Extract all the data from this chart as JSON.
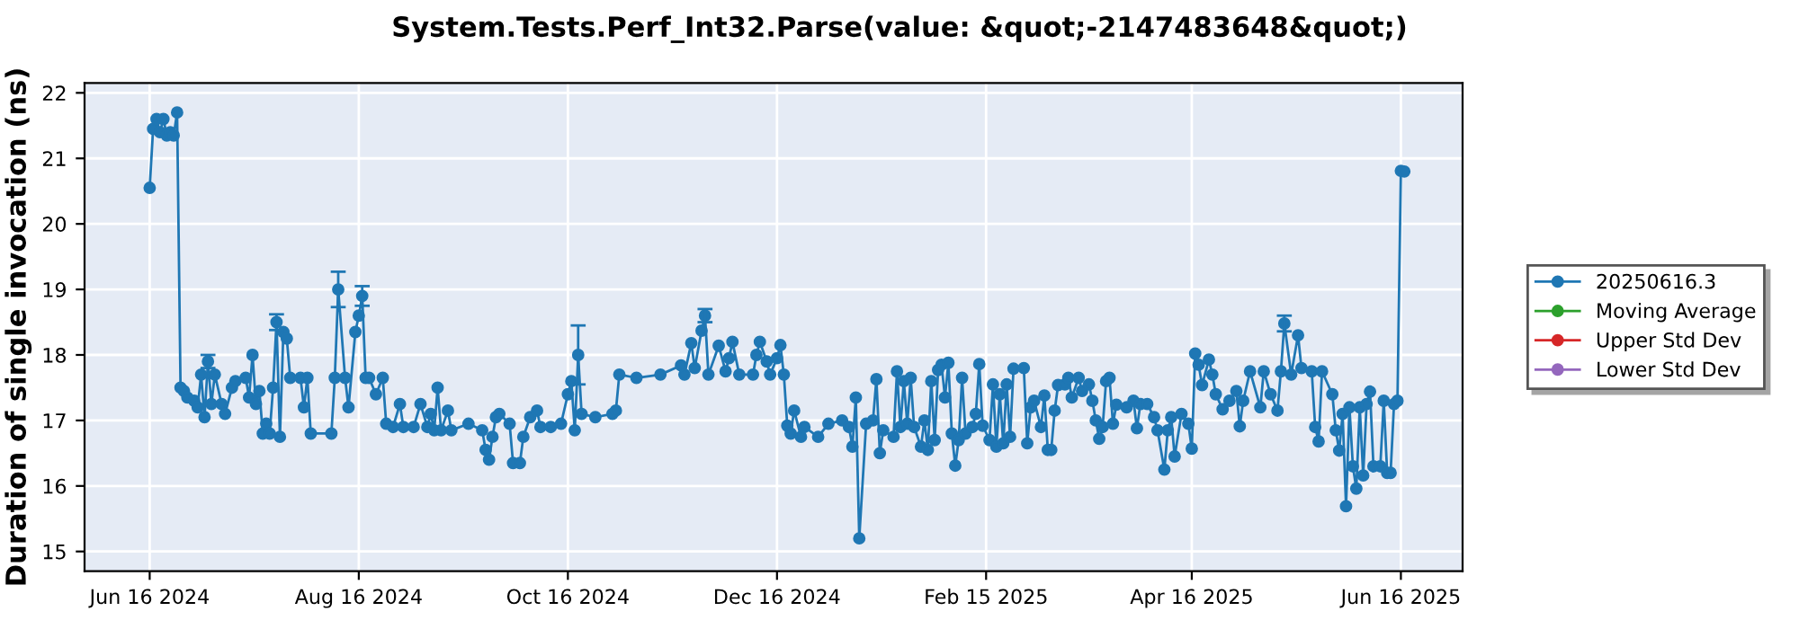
{
  "chart_data": {
    "type": "line",
    "title": "System.Tests.Perf_Int32.Parse(value: &quot;-2147483648&quot;)",
    "ylabel": "Duration of single invocation (ns)",
    "xlim": [
      "2024-05-28",
      "2025-07-04"
    ],
    "ylim": [
      14.7,
      22.15
    ],
    "xticks": [
      {
        "value": "2024-06-16",
        "label": "Jun 16 2024"
      },
      {
        "value": "2024-08-16",
        "label": "Aug 16 2024"
      },
      {
        "value": "2024-10-16",
        "label": "Oct 16 2024"
      },
      {
        "value": "2024-12-16",
        "label": "Dec 16 2024"
      },
      {
        "value": "2025-02-15",
        "label": "Feb 15 2025"
      },
      {
        "value": "2025-04-16",
        "label": "Apr 16 2025"
      },
      {
        "value": "2025-06-16",
        "label": "Jun 16 2025"
      }
    ],
    "yticks": [
      15,
      16,
      17,
      18,
      19,
      20,
      21,
      22
    ],
    "grid": true,
    "legend": "right",
    "marker": "circle",
    "line_style": "solid",
    "x": [
      "2024-06-16",
      "2024-06-17",
      "2024-06-18",
      "2024-06-19",
      "2024-06-20",
      "2024-06-21",
      "2024-06-22",
      "2024-06-23",
      "2024-06-24",
      "2024-06-25",
      "2024-06-26",
      "2024-06-27",
      "2024-06-29",
      "2024-06-30",
      "2024-07-01",
      "2024-07-02",
      "2024-07-03",
      "2024-07-04",
      "2024-07-05",
      "2024-07-07",
      "2024-07-08",
      "2024-07-10",
      "2024-07-11",
      "2024-07-14",
      "2024-07-15",
      "2024-07-16",
      "2024-07-17",
      "2024-07-18",
      "2024-07-19",
      "2024-07-20",
      "2024-07-21",
      "2024-07-22",
      "2024-07-23",
      "2024-07-24",
      "2024-07-25",
      "2024-07-26",
      "2024-07-27",
      "2024-07-30",
      "2024-07-31",
      "2024-08-01",
      "2024-08-02",
      "2024-08-08",
      "2024-08-09",
      "2024-08-10",
      "2024-08-12",
      "2024-08-13",
      "2024-08-15",
      "2024-08-16",
      "2024-08-17",
      "2024-08-18",
      "2024-08-19",
      "2024-08-21",
      "2024-08-23",
      "2024-08-24",
      "2024-08-26",
      "2024-08-28",
      "2024-08-29",
      "2024-09-01",
      "2024-09-03",
      "2024-09-05",
      "2024-09-06",
      "2024-09-07",
      "2024-09-08",
      "2024-09-09",
      "2024-09-11",
      "2024-09-12",
      "2024-09-17",
      "2024-09-21",
      "2024-09-22",
      "2024-09-23",
      "2024-09-24",
      "2024-09-25",
      "2024-09-26",
      "2024-09-29",
      "2024-09-30",
      "2024-10-02",
      "2024-10-03",
      "2024-10-05",
      "2024-10-07",
      "2024-10-08",
      "2024-10-11",
      "2024-10-14",
      "2024-10-16",
      "2024-10-17",
      "2024-10-18",
      "2024-10-19",
      "2024-10-20",
      "2024-10-24",
      "2024-10-29",
      "2024-10-30",
      "2024-10-31",
      "2024-11-05",
      "2024-11-12",
      "2024-11-18",
      "2024-11-19",
      "2024-11-21",
      "2024-11-22",
      "2024-11-24",
      "2024-11-25",
      "2024-11-26",
      "2024-11-29",
      "2024-12-01",
      "2024-12-02",
      "2024-12-03",
      "2024-12-05",
      "2024-12-09",
      "2024-12-10",
      "2024-12-11",
      "2024-12-13",
      "2024-12-14",
      "2024-12-16",
      "2024-12-17",
      "2024-12-18",
      "2024-12-19",
      "2024-12-20",
      "2024-12-21",
      "2024-12-23",
      "2024-12-24",
      "2024-12-28",
      "2024-12-31",
      "2025-01-04",
      "2025-01-06",
      "2025-01-07",
      "2025-01-08",
      "2025-01-09",
      "2025-01-11",
      "2025-01-13",
      "2025-01-14",
      "2025-01-15",
      "2025-01-16",
      "2025-01-19",
      "2025-01-20",
      "2025-01-21",
      "2025-01-22",
      "2025-01-23",
      "2025-01-24",
      "2025-01-25",
      "2025-01-27",
      "2025-01-28",
      "2025-01-29",
      "2025-01-30",
      "2025-01-31",
      "2025-02-01",
      "2025-02-02",
      "2025-02-03",
      "2025-02-04",
      "2025-02-05",
      "2025-02-06",
      "2025-02-07",
      "2025-02-08",
      "2025-02-09",
      "2025-02-11",
      "2025-02-12",
      "2025-02-13",
      "2025-02-14",
      "2025-02-16",
      "2025-02-17",
      "2025-02-18",
      "2025-02-19",
      "2025-02-20",
      "2025-02-21",
      "2025-02-22",
      "2025-02-23",
      "2025-02-26",
      "2025-02-27",
      "2025-02-28",
      "2025-03-01",
      "2025-03-03",
      "2025-03-04",
      "2025-03-05",
      "2025-03-06",
      "2025-03-07",
      "2025-03-08",
      "2025-03-10",
      "2025-03-11",
      "2025-03-12",
      "2025-03-14",
      "2025-03-15",
      "2025-03-17",
      "2025-03-18",
      "2025-03-19",
      "2025-03-20",
      "2025-03-21",
      "2025-03-22",
      "2025-03-23",
      "2025-03-24",
      "2025-03-25",
      "2025-03-28",
      "2025-03-30",
      "2025-03-31",
      "2025-04-01",
      "2025-04-03",
      "2025-04-05",
      "2025-04-06",
      "2025-04-08",
      "2025-04-09",
      "2025-04-10",
      "2025-04-11",
      "2025-04-13",
      "2025-04-15",
      "2025-04-16",
      "2025-04-17",
      "2025-04-18",
      "2025-04-19",
      "2025-04-21",
      "2025-04-22",
      "2025-04-23",
      "2025-04-25",
      "2025-04-27",
      "2025-04-29",
      "2025-04-30",
      "2025-05-01",
      "2025-05-03",
      "2025-05-06",
      "2025-05-07",
      "2025-05-09",
      "2025-05-11",
      "2025-05-12",
      "2025-05-13",
      "2025-05-15",
      "2025-05-17",
      "2025-05-18",
      "2025-05-21",
      "2025-05-22",
      "2025-05-23",
      "2025-05-24",
      "2025-05-27",
      "2025-05-28",
      "2025-05-29",
      "2025-05-30",
      "2025-05-31",
      "2025-06-01",
      "2025-06-02",
      "2025-06-03",
      "2025-06-04",
      "2025-06-05",
      "2025-06-06",
      "2025-06-07",
      "2025-06-08",
      "2025-06-10",
      "2025-06-11",
      "2025-06-12",
      "2025-06-13",
      "2025-06-14",
      "2025-06-15",
      "2025-06-16",
      "2025-06-17"
    ],
    "series": [
      {
        "name": "20250616.3",
        "color": "#1f77b4",
        "values": [
          20.55,
          21.45,
          21.6,
          21.4,
          21.6,
          21.35,
          21.4,
          21.35,
          21.7,
          17.5,
          17.45,
          17.35,
          17.3,
          17.2,
          17.7,
          17.05,
          17.9,
          17.25,
          17.7,
          17.25,
          17.1,
          17.5,
          17.6,
          17.65,
          17.35,
          18.0,
          17.25,
          17.45,
          16.8,
          16.95,
          16.8,
          17.5,
          18.5,
          16.75,
          18.35,
          18.25,
          17.65,
          17.65,
          17.2,
          17.65,
          16.8,
          16.8,
          17.65,
          19.0,
          17.65,
          17.2,
          18.35,
          18.6,
          18.9,
          17.65,
          17.65,
          17.4,
          17.65,
          16.95,
          16.9,
          17.25,
          16.9,
          16.9,
          17.25,
          16.9,
          17.1,
          16.85,
          17.5,
          16.85,
          17.15,
          16.85,
          16.95,
          16.85,
          16.55,
          16.4,
          16.75,
          17.05,
          17.1,
          16.95,
          16.35,
          16.35,
          16.75,
          17.05,
          17.15,
          16.9,
          16.9,
          16.95,
          17.4,
          17.6,
          16.85,
          18.0,
          17.1,
          17.05,
          17.1,
          17.15,
          17.7,
          17.65,
          17.7,
          17.84,
          17.7,
          18.18,
          17.8,
          18.37,
          18.6,
          17.7,
          18.14,
          17.75,
          17.95,
          18.2,
          17.7,
          17.7,
          18.0,
          18.2,
          17.9,
          17.7,
          17.95,
          18.15,
          17.7,
          16.92,
          16.8,
          17.15,
          16.75,
          16.9,
          16.75,
          16.95,
          17.0,
          16.9,
          16.6,
          17.35,
          15.2,
          16.95,
          17.0,
          17.63,
          16.5,
          16.85,
          16.75,
          17.75,
          16.9,
          17.6,
          16.95,
          17.65,
          16.9,
          16.6,
          17.0,
          16.55,
          17.6,
          16.7,
          17.77,
          17.85,
          17.35,
          17.88,
          16.8,
          16.31,
          16.7,
          17.65,
          16.8,
          16.9,
          17.1,
          17.86,
          16.92,
          16.7,
          17.55,
          16.6,
          17.4,
          16.65,
          17.55,
          16.75,
          17.79,
          17.8,
          16.65,
          17.2,
          17.3,
          16.9,
          17.38,
          16.55,
          16.55,
          17.15,
          17.54,
          17.55,
          17.65,
          17.35,
          17.65,
          17.45,
          17.55,
          17.3,
          17.0,
          16.72,
          16.9,
          17.6,
          17.65,
          16.95,
          17.24,
          17.2,
          17.3,
          16.88,
          17.25,
          17.25,
          17.05,
          16.85,
          16.25,
          16.85,
          17.05,
          16.45,
          17.1,
          16.95,
          16.57,
          18.02,
          17.85,
          17.54,
          17.93,
          17.7,
          17.4,
          17.17,
          17.3,
          17.45,
          16.91,
          17.3,
          17.75,
          17.2,
          17.75,
          17.4,
          17.15,
          17.75,
          18.48,
          17.7,
          18.3,
          17.8,
          17.75,
          16.9,
          16.68,
          17.75,
          17.4,
          16.85,
          16.54,
          17.1,
          15.69,
          17.2,
          16.3,
          15.96,
          17.2,
          16.16,
          17.25,
          17.44,
          16.3,
          16.3,
          17.3,
          16.2,
          16.2,
          17.25,
          17.3,
          20.81,
          20.8
        ],
        "errors": [
          null,
          null,
          null,
          null,
          null,
          null,
          null,
          null,
          null,
          null,
          null,
          null,
          null,
          null,
          null,
          null,
          0.1,
          null,
          null,
          null,
          null,
          null,
          null,
          null,
          null,
          null,
          null,
          null,
          null,
          null,
          null,
          null,
          0.12,
          null,
          null,
          null,
          null,
          null,
          null,
          null,
          null,
          null,
          null,
          0.27,
          null,
          null,
          null,
          null,
          0.15,
          null,
          null,
          null,
          null,
          null,
          null,
          null,
          null,
          null,
          null,
          null,
          null,
          null,
          null,
          null,
          null,
          null,
          null,
          null,
          null,
          null,
          null,
          null,
          null,
          null,
          null,
          null,
          null,
          null,
          null,
          null,
          null,
          null,
          null,
          null,
          null,
          0.45,
          null,
          null,
          null,
          null,
          null,
          null,
          null,
          null,
          null,
          null,
          null,
          null,
          0.1,
          null,
          null,
          null,
          null,
          null,
          null,
          null,
          null,
          null,
          null,
          null,
          null,
          null,
          null,
          null,
          null,
          null,
          null,
          null,
          null,
          null,
          null,
          null,
          null,
          null,
          null,
          null,
          null,
          null,
          null,
          null,
          null,
          null,
          null,
          null,
          null,
          null,
          null,
          null,
          null,
          null,
          null,
          null,
          null,
          null,
          null,
          null,
          null,
          null,
          null,
          null,
          null,
          null,
          null,
          null,
          null,
          null,
          null,
          null,
          null,
          null,
          null,
          null,
          null,
          null,
          null,
          null,
          null,
          null,
          null,
          null,
          null,
          null,
          null,
          null,
          null,
          null,
          null,
          null,
          null,
          null,
          null,
          null,
          null,
          null,
          null,
          null,
          null,
          null,
          null,
          null,
          null,
          null,
          null,
          null,
          null,
          null,
          null,
          null,
          null,
          null,
          null,
          null,
          null,
          null,
          null,
          null,
          null,
          null,
          null,
          null,
          null,
          null,
          null,
          null,
          null,
          null,
          null,
          null,
          0.12,
          null,
          null,
          null,
          null,
          null,
          null,
          null,
          null,
          null,
          null,
          null,
          null,
          null,
          null,
          null,
          null,
          null,
          null,
          null,
          null,
          null,
          null,
          null,
          null,
          null,
          null,
          null,
          null
        ]
      },
      {
        "name": "Moving Average",
        "color": "#2ca02c",
        "values": [
          null,
          null,
          null,
          null,
          null,
          null,
          null,
          null,
          null,
          null,
          null,
          null,
          null,
          null,
          null,
          null,
          null,
          null,
          null,
          null,
          null,
          null,
          null,
          null,
          null,
          null,
          null,
          null,
          null,
          null,
          null,
          null,
          null,
          null,
          null,
          null,
          null,
          null,
          null,
          null,
          null,
          null,
          null,
          null,
          null,
          null,
          null,
          null,
          null,
          null,
          null,
          null,
          null,
          null,
          null,
          null,
          null,
          null,
          null,
          null,
          null,
          null,
          null,
          null,
          null,
          null,
          null,
          null,
          null,
          null,
          null,
          null,
          null,
          null,
          null,
          null,
          null,
          null,
          null,
          null,
          null,
          null,
          null,
          null,
          null,
          null,
          null,
          null,
          null,
          null,
          null,
          null,
          null,
          null,
          null,
          null,
          null,
          null,
          null,
          null,
          null,
          null,
          null,
          null,
          null,
          null,
          null,
          null,
          null,
          null,
          null,
          null,
          null,
          null,
          null,
          null,
          null,
          null,
          null,
          null,
          null,
          null,
          null,
          null,
          null,
          null,
          null,
          null,
          null,
          null,
          null,
          null,
          null,
          null,
          null,
          null,
          null,
          null,
          null,
          null,
          null,
          null,
          null,
          null,
          null,
          null,
          null,
          null,
          null,
          null,
          null,
          null,
          null,
          null,
          null,
          null,
          null,
          null,
          null,
          null,
          null,
          null,
          null,
          null,
          null,
          null,
          null,
          null,
          null,
          null,
          null,
          null,
          null,
          null,
          null,
          null,
          null,
          null,
          null,
          null,
          null,
          null,
          null,
          null,
          null,
          null,
          null,
          null,
          null,
          null,
          null,
          null,
          null,
          null,
          null,
          null,
          null,
          null,
          null,
          null,
          null,
          null,
          null,
          null,
          null,
          null,
          null,
          null,
          null,
          null,
          null,
          null,
          null,
          null,
          null,
          null,
          null,
          null,
          null,
          null,
          null,
          null,
          null,
          null,
          null,
          null,
          null,
          null,
          null,
          null,
          null,
          null,
          null,
          null,
          null,
          null,
          null,
          null,
          null,
          null,
          null,
          null,
          null,
          null,
          null,
          null,
          null
        ]
      },
      {
        "name": "Upper Std Dev",
        "color": "#d62728",
        "values": [
          null,
          null,
          null,
          null,
          null,
          null,
          null,
          null,
          null,
          null,
          null,
          null,
          null,
          null,
          null,
          null,
          null,
          null,
          null,
          null,
          null,
          null,
          null,
          null,
          null,
          null,
          null,
          null,
          null,
          null,
          null,
          null,
          null,
          null,
          null,
          null,
          null,
          null,
          null,
          null,
          null,
          null,
          null,
          null,
          null,
          null,
          null,
          null,
          null,
          null,
          null,
          null,
          null,
          null,
          null,
          null,
          null,
          null,
          null,
          null,
          null,
          null,
          null,
          null,
          null,
          null,
          null,
          null,
          null,
          null,
          null,
          null,
          null,
          null,
          null,
          null,
          null,
          null,
          null,
          null,
          null,
          null,
          null,
          null,
          null,
          null,
          null,
          null,
          null,
          null,
          null,
          null,
          null,
          null,
          null,
          null,
          null,
          null,
          null,
          null,
          null,
          null,
          null,
          null,
          null,
          null,
          null,
          null,
          null,
          null,
          null,
          null,
          null,
          null,
          null,
          null,
          null,
          null,
          null,
          null,
          null,
          null,
          null,
          null,
          null,
          null,
          null,
          null,
          null,
          null,
          null,
          null,
          null,
          null,
          null,
          null,
          null,
          null,
          null,
          null,
          null,
          null,
          null,
          null,
          null,
          null,
          null,
          null,
          null,
          null,
          null,
          null,
          null,
          null,
          null,
          null,
          null,
          null,
          null,
          null,
          null,
          null,
          null,
          null,
          null,
          null,
          null,
          null,
          null,
          null,
          null,
          null,
          null,
          null,
          null,
          null,
          null,
          null,
          null,
          null,
          null,
          null,
          null,
          null,
          null,
          null,
          null,
          null,
          null,
          null,
          null,
          null,
          null,
          null,
          null,
          null,
          null,
          null,
          null,
          null,
          null,
          null,
          null,
          null,
          null,
          null,
          null,
          null,
          null,
          null,
          null,
          null,
          null,
          null,
          null,
          null,
          null,
          null,
          null,
          null,
          null,
          null,
          null,
          null,
          null,
          null,
          null,
          null,
          null,
          null,
          null,
          null,
          null,
          null,
          null,
          null,
          null,
          null,
          null,
          null,
          null,
          null,
          null,
          null,
          null,
          null,
          null
        ]
      },
      {
        "name": "Lower Std Dev",
        "color": "#9467bd",
        "values": [
          null,
          null,
          null,
          null,
          null,
          null,
          null,
          null,
          null,
          null,
          null,
          null,
          null,
          null,
          null,
          null,
          null,
          null,
          null,
          null,
          null,
          null,
          null,
          null,
          null,
          null,
          null,
          null,
          null,
          null,
          null,
          null,
          null,
          null,
          null,
          null,
          null,
          null,
          null,
          null,
          null,
          null,
          null,
          null,
          null,
          null,
          null,
          null,
          null,
          null,
          null,
          null,
          null,
          null,
          null,
          null,
          null,
          null,
          null,
          null,
          null,
          null,
          null,
          null,
          null,
          null,
          null,
          null,
          null,
          null,
          null,
          null,
          null,
          null,
          null,
          null,
          null,
          null,
          null,
          null,
          null,
          null,
          null,
          null,
          null,
          null,
          null,
          null,
          null,
          null,
          null,
          null,
          null,
          null,
          null,
          null,
          null,
          null,
          null,
          null,
          null,
          null,
          null,
          null,
          null,
          null,
          null,
          null,
          null,
          null,
          null,
          null,
          null,
          null,
          null,
          null,
          null,
          null,
          null,
          null,
          null,
          null,
          null,
          null,
          null,
          null,
          null,
          null,
          null,
          null,
          null,
          null,
          null,
          null,
          null,
          null,
          null,
          null,
          null,
          null,
          null,
          null,
          null,
          null,
          null,
          null,
          null,
          null,
          null,
          null,
          null,
          null,
          null,
          null,
          null,
          null,
          null,
          null,
          null,
          null,
          null,
          null,
          null,
          null,
          null,
          null,
          null,
          null,
          null,
          null,
          null,
          null,
          null,
          null,
          null,
          null,
          null,
          null,
          null,
          null,
          null,
          null,
          null,
          null,
          null,
          null,
          null,
          null,
          null,
          null,
          null,
          null,
          null,
          null,
          null,
          null,
          null,
          null,
          null,
          null,
          null,
          null,
          null,
          null,
          null,
          null,
          null,
          null,
          null,
          null,
          null,
          null,
          null,
          null,
          null,
          null,
          null,
          null,
          null,
          null,
          null,
          null,
          null,
          null,
          null,
          null,
          null,
          null,
          null,
          null,
          null,
          null,
          null,
          null,
          null,
          null,
          null,
          null,
          null,
          null,
          null,
          null,
          null,
          null,
          null,
          null,
          null
        ]
      }
    ]
  }
}
